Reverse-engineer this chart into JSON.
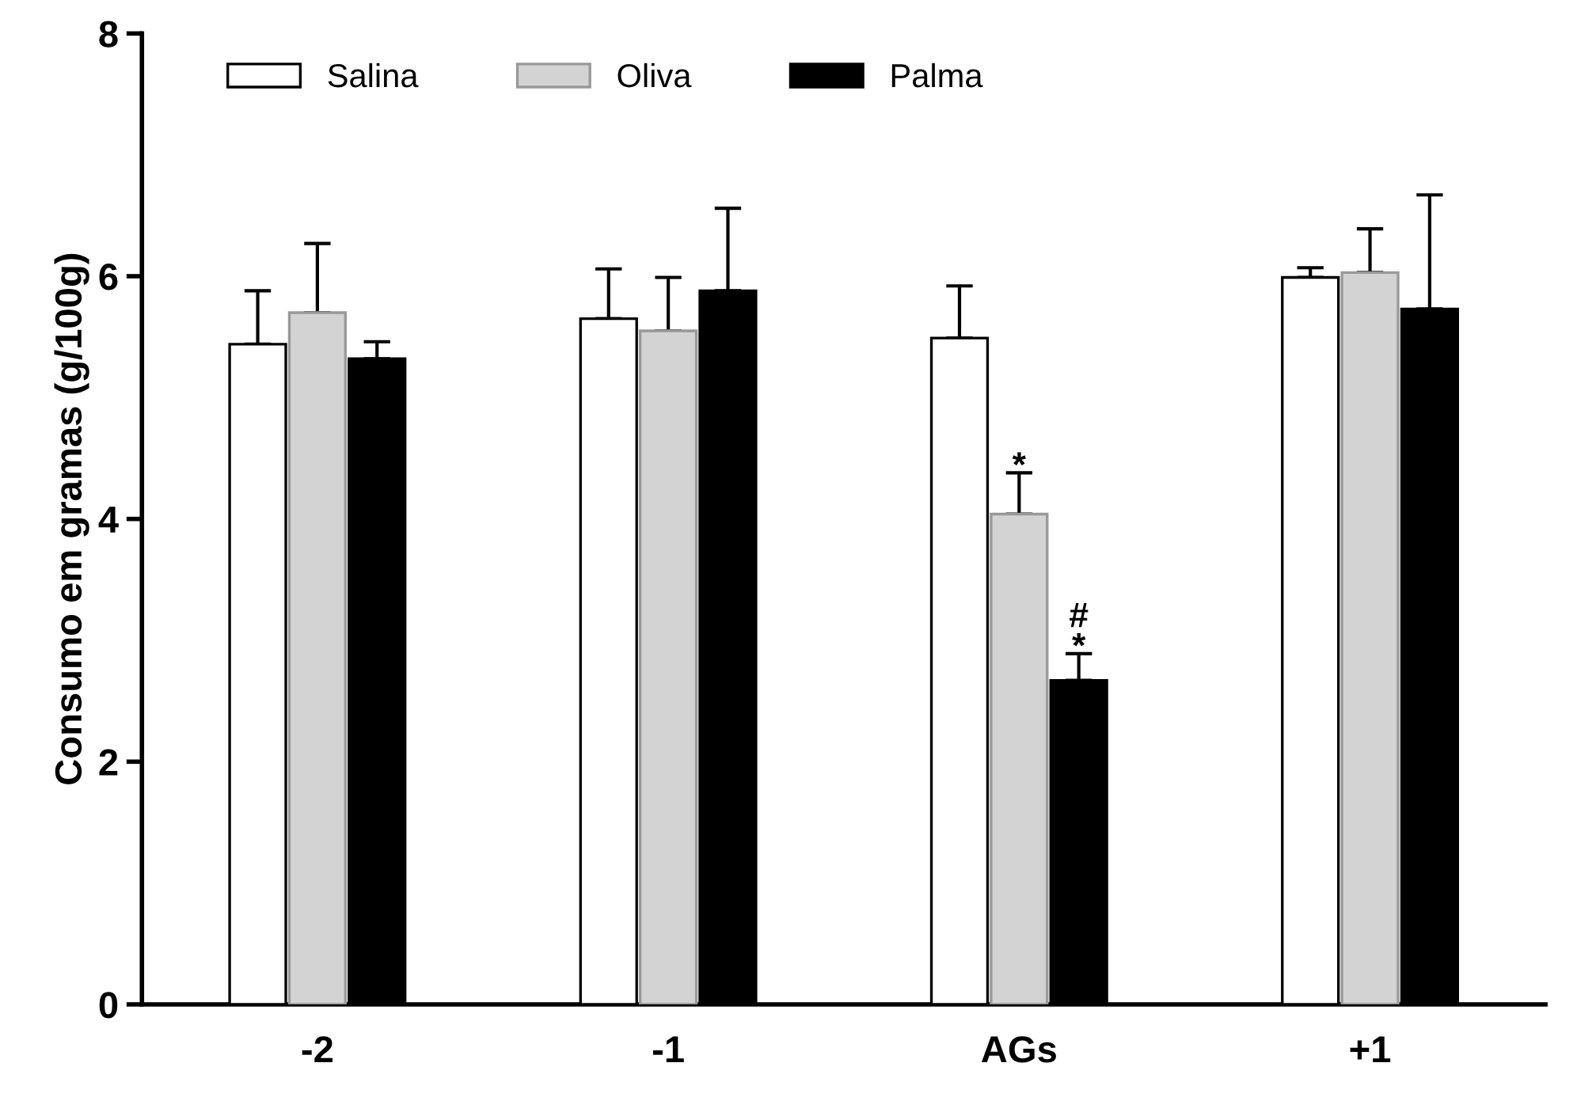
{
  "chart_data": {
    "type": "bar",
    "ylabel": "Consumo em gramas (g/100g)",
    "categories": [
      "-2",
      "-1",
      "AGs",
      "+1"
    ],
    "series": [
      {
        "name": "Salina",
        "color": "#ffffff",
        "values": [
          5.44,
          5.65,
          5.49,
          5.99
        ],
        "errors": [
          [
            5.44,
            5.88
          ],
          [
            5.65,
            6.06
          ],
          [
            5.49,
            5.92
          ],
          [
            5.99,
            6.07
          ]
        ]
      },
      {
        "name": "Oliva",
        "color": "#d3d3d3",
        "values": [
          5.7,
          5.55,
          4.04,
          6.03
        ],
        "errors": [
          [
            5.7,
            6.27
          ],
          [
            5.55,
            5.99
          ],
          [
            4.04,
            4.38
          ],
          [
            6.03,
            6.39
          ]
        ]
      },
      {
        "name": "Palma",
        "color": "#000000",
        "values": [
          5.32,
          5.88,
          2.67,
          5.73
        ],
        "errors": [
          [
            5.32,
            5.46
          ],
          [
            5.88,
            6.56
          ],
          [
            2.67,
            2.89
          ],
          [
            5.73,
            6.67
          ]
        ]
      }
    ],
    "annotations": [
      {
        "text": "*",
        "x": "AGs",
        "y": 4.38
      },
      "#\n*"
    ],
    "ylim": [
      0,
      8
    ],
    "yticks": [
      0,
      2,
      4,
      6,
      8
    ],
    "grid": false,
    "legend": "top left"
  }
}
